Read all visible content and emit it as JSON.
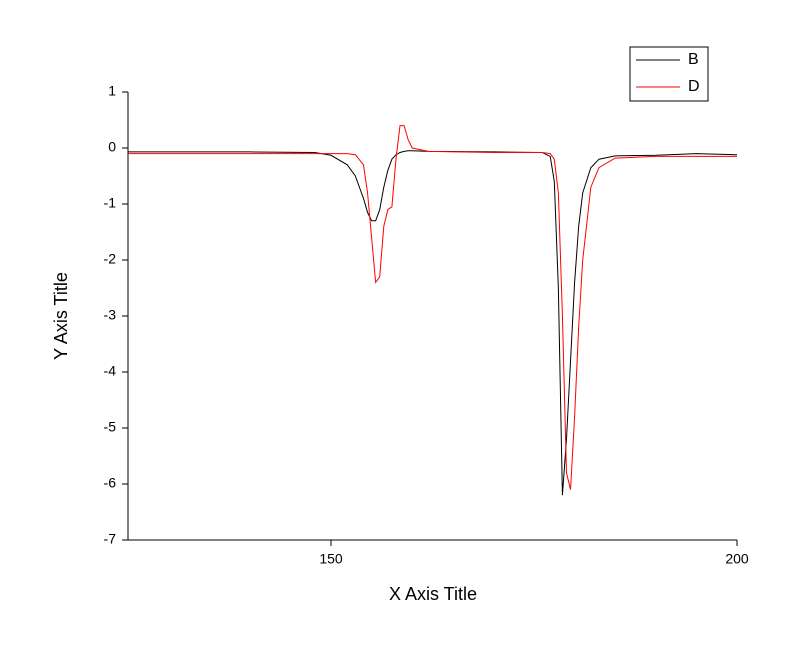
{
  "chart_data": {
    "type": "line",
    "x_label": "X Axis Title",
    "y_label": "Y Axis Title",
    "x": [
      125,
      140,
      148,
      150,
      152,
      153,
      154,
      154.5,
      155,
      155.5,
      156,
      156.5,
      157,
      157.5,
      158,
      158.5,
      159,
      159.5,
      160,
      162,
      170,
      176,
      177,
      177.5,
      178,
      178.5,
      179,
      179.5,
      180,
      180.5,
      181,
      182,
      183,
      185,
      190,
      195,
      200
    ],
    "series": [
      {
        "name": "B",
        "color": "#000000",
        "values": [
          -0.07,
          -0.07,
          -0.08,
          -0.13,
          -0.3,
          -0.5,
          -0.9,
          -1.15,
          -1.3,
          -1.3,
          -1.1,
          -0.7,
          -0.4,
          -0.2,
          -0.12,
          -0.08,
          -0.06,
          -0.05,
          -0.05,
          -0.06,
          -0.07,
          -0.08,
          -0.15,
          -0.6,
          -2.5,
          -6.2,
          -5.2,
          -3.8,
          -2.4,
          -1.4,
          -0.8,
          -0.35,
          -0.2,
          -0.14,
          -0.13,
          -0.1,
          -0.12
        ]
      },
      {
        "name": "D",
        "color": "#ff0000",
        "values": [
          -0.1,
          -0.1,
          -0.1,
          -0.1,
          -0.1,
          -0.12,
          -0.3,
          -0.8,
          -1.6,
          -2.4,
          -2.3,
          -1.4,
          -1.1,
          -1.05,
          -0.2,
          0.4,
          0.4,
          0.15,
          0.0,
          -0.06,
          -0.08,
          -0.08,
          -0.1,
          -0.2,
          -0.8,
          -3.0,
          -5.8,
          -6.1,
          -4.8,
          -3.2,
          -2.0,
          -0.7,
          -0.35,
          -0.18,
          -0.15,
          -0.15,
          -0.15
        ]
      }
    ],
    "xlim": [
      125,
      200
    ],
    "xticks": [
      150,
      200
    ],
    "ylim": [
      -7,
      1
    ],
    "yticks": [
      -7,
      -6,
      -5,
      -4,
      -3,
      -2,
      -1,
      0,
      1
    ],
    "legend": "top-right"
  }
}
